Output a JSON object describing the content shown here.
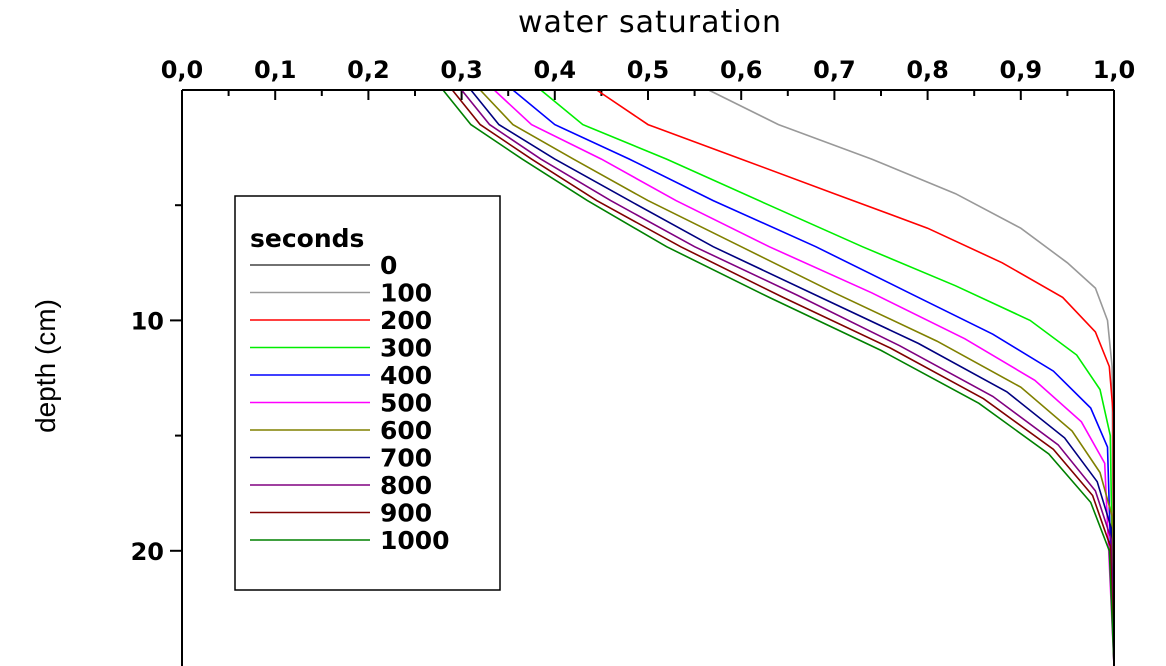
{
  "chart_data": {
    "type": "line",
    "title": "water saturation",
    "xlabel": "water saturation",
    "ylabel": "depth (cm)",
    "xlim": [
      0.0,
      1.0
    ],
    "ylim": [
      0,
      25
    ],
    "y_inverted": true,
    "x_axis_position": "top",
    "x_ticks": [
      "0,0",
      "0,1",
      "0,2",
      "0,3",
      "0,4",
      "0,5",
      "0,6",
      "0,7",
      "0,8",
      "0,9",
      "1,0"
    ],
    "y_ticks": [
      10,
      20
    ],
    "y_minor_ticks": [
      5,
      15
    ],
    "grid": false,
    "legend": {
      "title": "seconds",
      "placement": "left-middle"
    },
    "series": [
      {
        "name": "0",
        "color": "#444444",
        "points": [
          [
            1.0,
            0
          ],
          [
            1.0,
            25
          ]
        ]
      },
      {
        "name": "100",
        "color": "#999999",
        "points": [
          [
            0.565,
            0
          ],
          [
            0.64,
            1.5
          ],
          [
            0.74,
            3
          ],
          [
            0.83,
            4.5
          ],
          [
            0.9,
            6
          ],
          [
            0.95,
            7.5
          ],
          [
            0.98,
            8.6
          ],
          [
            0.993,
            10
          ],
          [
            0.998,
            12
          ],
          [
            1.0,
            25
          ]
        ]
      },
      {
        "name": "200",
        "color": "#ff0000",
        "points": [
          [
            0.445,
            0
          ],
          [
            0.5,
            1.5
          ],
          [
            0.6,
            3
          ],
          [
            0.7,
            4.5
          ],
          [
            0.8,
            6
          ],
          [
            0.88,
            7.5
          ],
          [
            0.945,
            9
          ],
          [
            0.98,
            10.5
          ],
          [
            0.995,
            12
          ],
          [
            0.999,
            14
          ],
          [
            1.0,
            25
          ]
        ]
      },
      {
        "name": "300",
        "color": "#00ee00",
        "points": [
          [
            0.385,
            0
          ],
          [
            0.43,
            1.5
          ],
          [
            0.52,
            3
          ],
          [
            0.63,
            5
          ],
          [
            0.73,
            6.8
          ],
          [
            0.83,
            8.5
          ],
          [
            0.91,
            10
          ],
          [
            0.96,
            11.5
          ],
          [
            0.985,
            13
          ],
          [
            0.996,
            15
          ],
          [
            1.0,
            25
          ]
        ]
      },
      {
        "name": "400",
        "color": "#0000ff",
        "points": [
          [
            0.355,
            0
          ],
          [
            0.4,
            1.5
          ],
          [
            0.48,
            3
          ],
          [
            0.57,
            4.8
          ],
          [
            0.68,
            6.8
          ],
          [
            0.78,
            8.8
          ],
          [
            0.87,
            10.6
          ],
          [
            0.935,
            12.2
          ],
          [
            0.975,
            13.8
          ],
          [
            0.993,
            15.5
          ],
          [
            1.0,
            25
          ]
        ]
      },
      {
        "name": "500",
        "color": "#ff00ff",
        "points": [
          [
            0.335,
            0
          ],
          [
            0.375,
            1.5
          ],
          [
            0.45,
            3
          ],
          [
            0.53,
            4.8
          ],
          [
            0.63,
            6.8
          ],
          [
            0.74,
            8.8
          ],
          [
            0.84,
            10.8
          ],
          [
            0.915,
            12.6
          ],
          [
            0.965,
            14.4
          ],
          [
            0.99,
            16.2
          ],
          [
            1.0,
            25
          ]
        ]
      },
      {
        "name": "600",
        "color": "#808000",
        "points": [
          [
            0.32,
            0
          ],
          [
            0.355,
            1.5
          ],
          [
            0.42,
            3
          ],
          [
            0.5,
            4.8
          ],
          [
            0.6,
            6.8
          ],
          [
            0.7,
            8.8
          ],
          [
            0.81,
            10.9
          ],
          [
            0.9,
            12.9
          ],
          [
            0.955,
            14.8
          ],
          [
            0.985,
            16.6
          ],
          [
            0.998,
            18.5
          ],
          [
            1.0,
            25
          ]
        ]
      },
      {
        "name": "700",
        "color": "#000080",
        "points": [
          [
            0.31,
            0
          ],
          [
            0.34,
            1.5
          ],
          [
            0.4,
            3
          ],
          [
            0.48,
            4.8
          ],
          [
            0.57,
            6.8
          ],
          [
            0.68,
            8.9
          ],
          [
            0.79,
            11
          ],
          [
            0.885,
            13.1
          ],
          [
            0.947,
            15.1
          ],
          [
            0.982,
            17
          ],
          [
            0.997,
            19
          ],
          [
            1.0,
            25
          ]
        ]
      },
      {
        "name": "800",
        "color": "#800080",
        "points": [
          [
            0.3,
            0
          ],
          [
            0.33,
            1.5
          ],
          [
            0.385,
            3
          ],
          [
            0.46,
            4.8
          ],
          [
            0.55,
            6.8
          ],
          [
            0.66,
            8.9
          ],
          [
            0.77,
            11.1
          ],
          [
            0.87,
            13.3
          ],
          [
            0.94,
            15.4
          ],
          [
            0.98,
            17.4
          ],
          [
            0.997,
            19.5
          ],
          [
            1.0,
            25
          ]
        ]
      },
      {
        "name": "900",
        "color": "#800000",
        "points": [
          [
            0.29,
            0
          ],
          [
            0.32,
            1.5
          ],
          [
            0.375,
            3
          ],
          [
            0.445,
            4.8
          ],
          [
            0.535,
            6.8
          ],
          [
            0.645,
            9
          ],
          [
            0.76,
            11.2
          ],
          [
            0.86,
            13.4
          ],
          [
            0.935,
            15.6
          ],
          [
            0.977,
            17.6
          ],
          [
            0.996,
            19.8
          ],
          [
            1.0,
            25
          ]
        ]
      },
      {
        "name": "1000",
        "color": "#008000",
        "points": [
          [
            0.28,
            0
          ],
          [
            0.31,
            1.5
          ],
          [
            0.365,
            3
          ],
          [
            0.435,
            4.8
          ],
          [
            0.52,
            6.8
          ],
          [
            0.63,
            9
          ],
          [
            0.75,
            11.3
          ],
          [
            0.855,
            13.6
          ],
          [
            0.93,
            15.8
          ],
          [
            0.975,
            17.9
          ],
          [
            0.995,
            20
          ],
          [
            1.0,
            25
          ]
        ]
      }
    ]
  }
}
